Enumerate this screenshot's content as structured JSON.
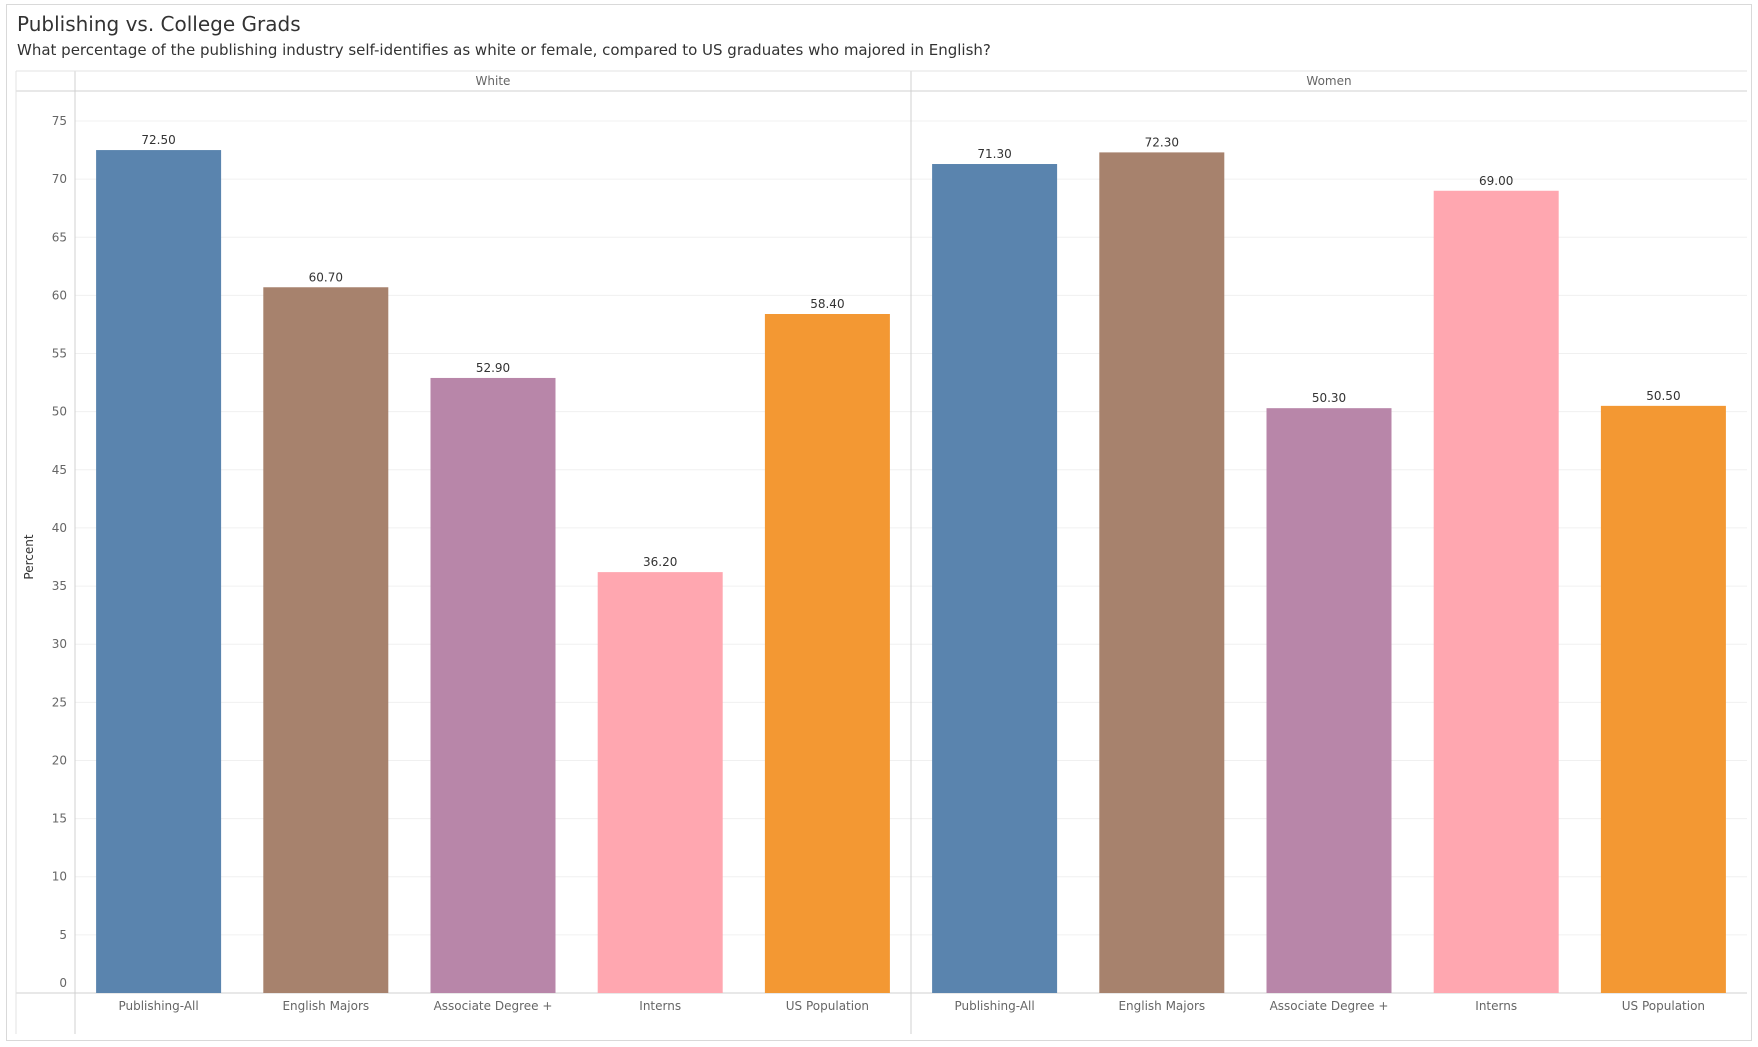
{
  "title": "Publishing vs. College Grads",
  "subtitle": "What percentage of the publishing industry self-identifies as white or female, compared to US graduates who majored in English?",
  "colors": {
    "Publishing-All": "#5a84ae",
    "English Majors": "#a7826d",
    "Associate Degree +": "#b886a9",
    "Interns": "#ffa7b0",
    "US Population": "#f39833"
  },
  "chart_data": {
    "type": "bar",
    "ylabel": "Percent",
    "ylim": [
      0,
      75
    ],
    "yticks": [
      0,
      5,
      10,
      15,
      20,
      25,
      30,
      35,
      40,
      45,
      50,
      55,
      60,
      65,
      70,
      75
    ],
    "grid": true,
    "categories": [
      "Publishing-All",
      "English Majors",
      "Associate Degree +",
      "Interns",
      "US Population"
    ],
    "panels": [
      {
        "name": "White",
        "values": [
          72.5,
          60.7,
          52.9,
          36.2,
          58.4
        ],
        "labels": [
          "72.50",
          "60.70",
          "52.90",
          "36.20",
          "58.40"
        ]
      },
      {
        "name": "Women",
        "values": [
          71.3,
          72.3,
          50.3,
          69.0,
          50.5
        ],
        "labels": [
          "71.30",
          "72.30",
          "50.30",
          "69.00",
          "50.50"
        ]
      }
    ]
  }
}
